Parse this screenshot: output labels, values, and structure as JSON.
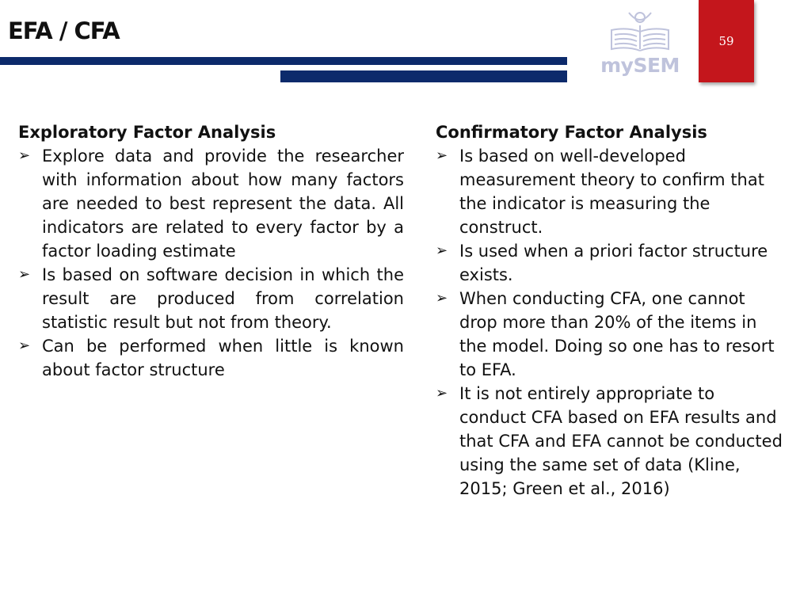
{
  "header": {
    "title": "EFA / CFA",
    "page_number": "59",
    "logo_text": "mySEM"
  },
  "colors": {
    "navy": "#0c2a6b",
    "red": "#c4161c",
    "logo": "#bfc3dc"
  },
  "left": {
    "heading": "Exploratory Factor Analysis",
    "items": [
      "Explore data  and provide the researcher with information about how many factors are needed to best represent the data. All indicators are  related to every factor by a factor loading estimate",
      "Is based on software decision in which the result are produced from correlation statistic result but not from theory.",
      "Can be performed when little is known about factor structure"
    ]
  },
  "right": {
    "heading": "Confirmatory Factor Analysis",
    "items": [
      "Is based on well-developed measurement theory to confirm that the indicator is measuring the construct.",
      "Is used when a priori factor structure exists.",
      "When conducting CFA, one cannot drop more than 20% of the items in the model. Doing so one has to resort to EFA.",
      "It is not entirely appropriate to conduct CFA based on EFA results and that CFA and EFA cannot be conducted using the same set of data (Kline, 2015; Green et al., 2016)"
    ]
  },
  "icons": {
    "bullet": "arrowhead-bullet-icon",
    "logo": "book-reader-logo-icon"
  }
}
